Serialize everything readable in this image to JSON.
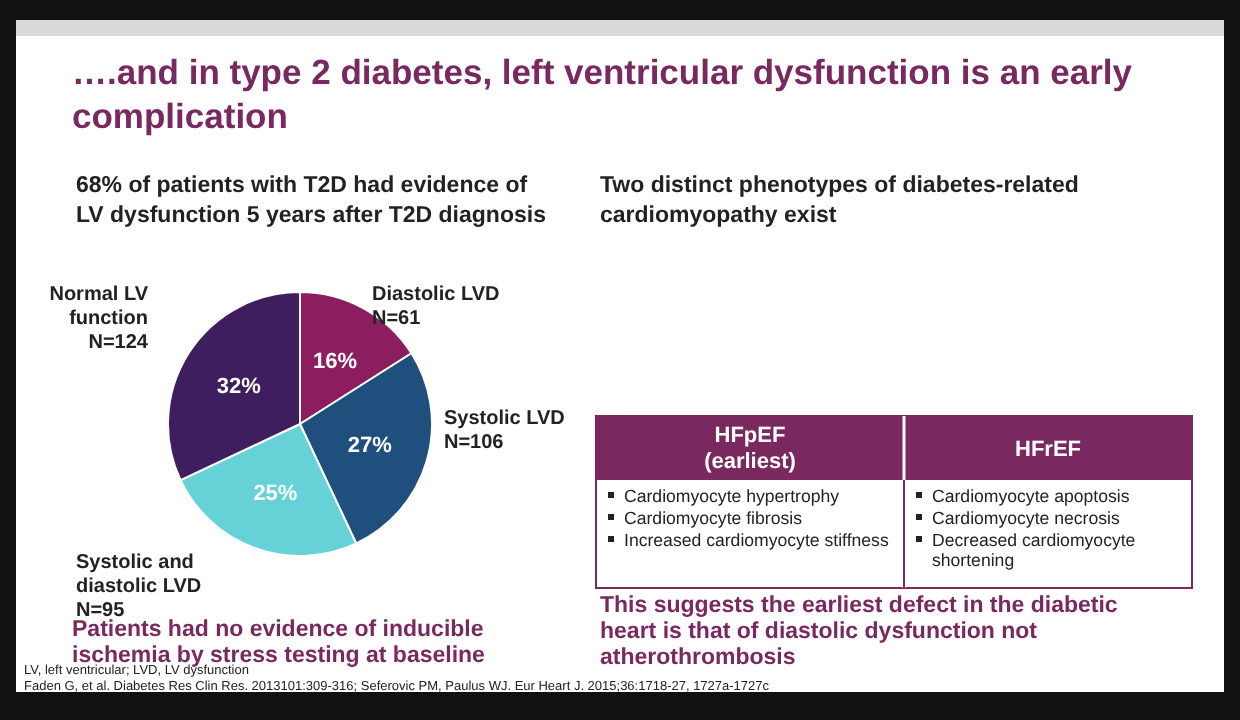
{
  "chart_data": {
    "type": "pie",
    "title": "….and in type 2 diabetes, left ventricular dysfunction is an early complication",
    "subtitle": "68% of patients with T2D had evidence of  LV dysfunction 5 years after T2D diagnosis",
    "categories": [
      "Diastolic LVD\nN=61",
      "Systolic LVD\nN=106",
      "Systolic and\ndiastolic LVD\nN=95",
      "Normal LV\nfunction\nN=124"
    ],
    "values": [
      16,
      27,
      25,
      32
    ],
    "colors": [
      "#8c1d5f",
      "#1f4f7c",
      "#66d2d8",
      "#3e1e5e"
    ],
    "value_labels": [
      "16%",
      "27%",
      "25%",
      "32%"
    ],
    "annotations": [
      "Two distinct phenotypes of diabetes-related cardiomyopathy exist",
      "HFpEF (earliest)",
      "HFrEF",
      "Cardiomyocyte hypertrophy",
      "Cardiomyocyte fibrosis",
      "Increased cardiomyocyte stiffness",
      "Cardiomyocyte apoptosis",
      "Cardiomyocyte necrosis",
      "Decreased cardiomyocyte shortening",
      "This suggests the earliest defect in the diabetic heart is that of diastolic dysfunction not atherothrombosis",
      "Patients had no evidence of inducible ischemia by stress testing at baseline",
      "LV, left ventricular; LVD, LV dysfunction",
      "Faden G, et al. Diabetes Res Clin Res. 2013101:309-316; Seferovic PM, Paulus WJ. Eur Heart J. 2015;36:1718-27, 1727a-1727c"
    ]
  }
}
